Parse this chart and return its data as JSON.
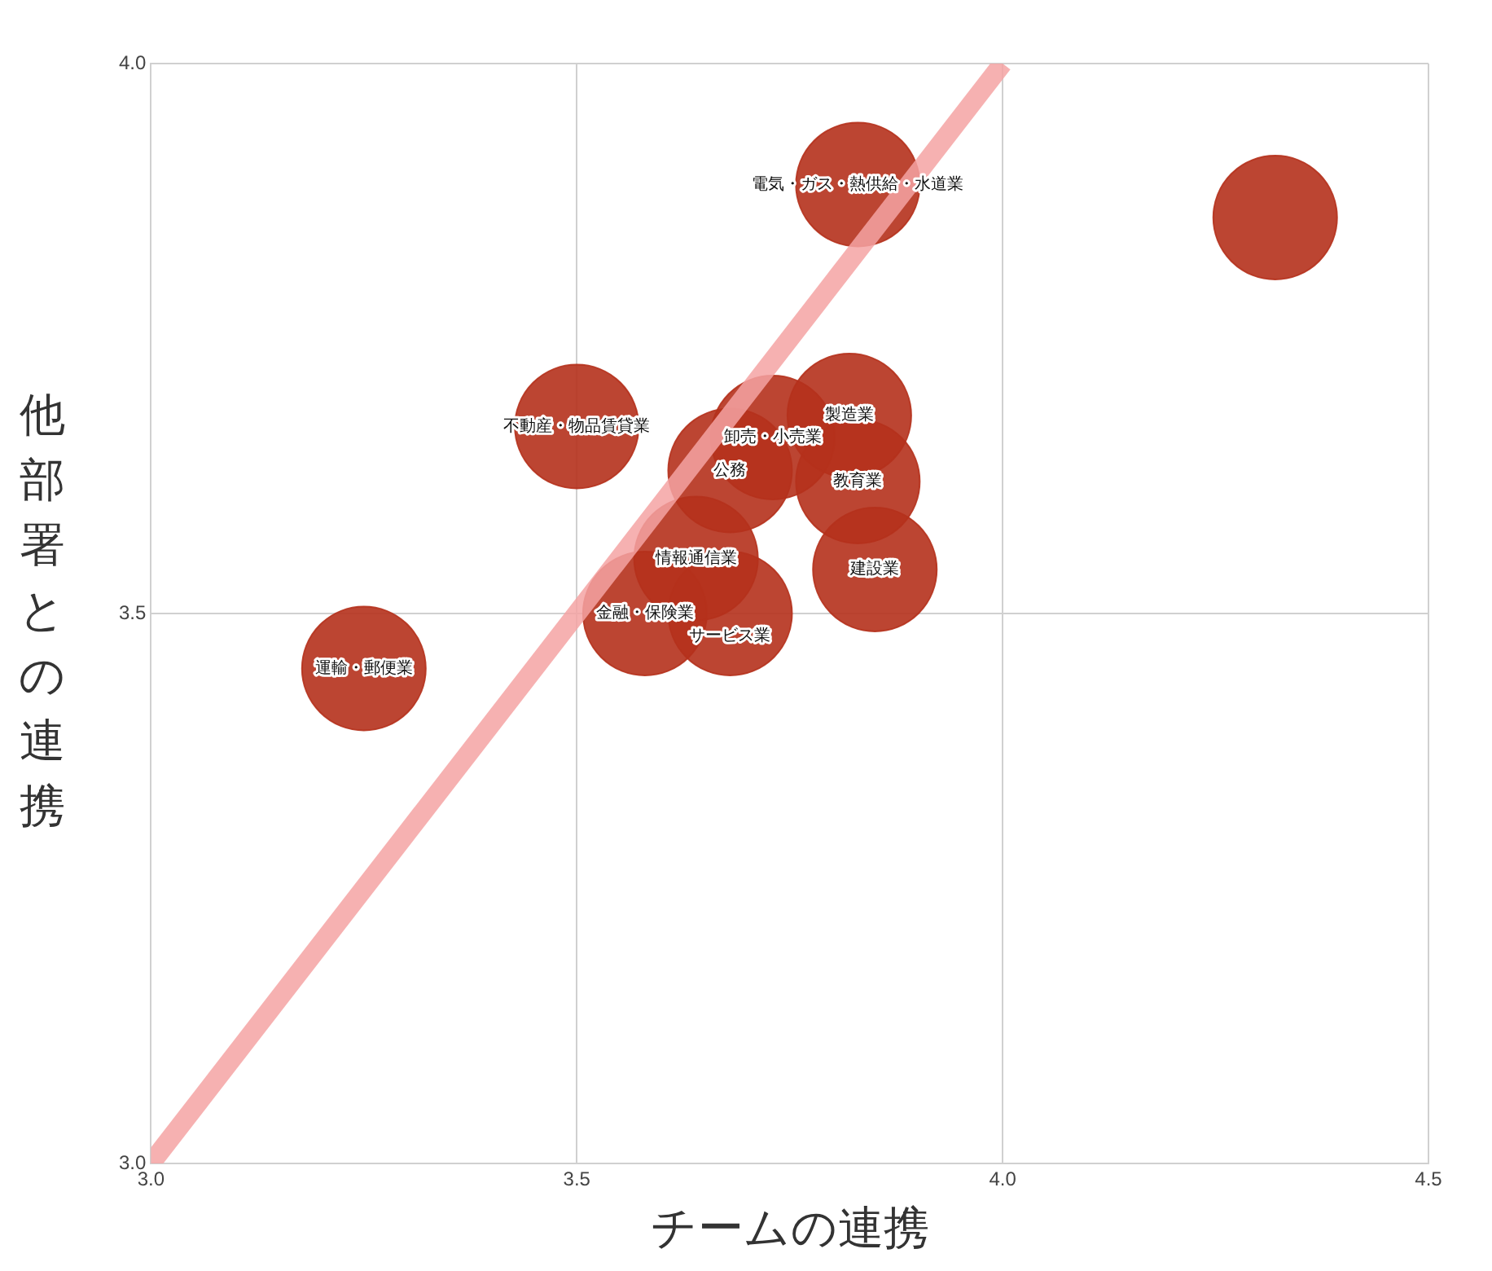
{
  "chart_data": {
    "type": "bubble",
    "xlabel": "チームの連携",
    "ylabel": "他部署との連携",
    "xlim": [
      3.0,
      4.5
    ],
    "xticks": [
      {
        "value": 3.0,
        "label": "3.0"
      },
      {
        "value": 3.5,
        "label": "3.5"
      },
      {
        "value": 4.0,
        "label": "4.0"
      },
      {
        "value": 4.5,
        "label": "4.5"
      }
    ],
    "ylim": [
      3.0,
      4.0
    ],
    "yticks": [
      {
        "value": 3.0,
        "label": "3.0"
      },
      {
        "value": 3.5,
        "label": "3.5"
      },
      {
        "value": 4.0,
        "label": "4.0"
      }
    ],
    "grid": true,
    "legend": false,
    "series": [
      {
        "type": "line",
        "color": "#f5a3a3",
        "x": [
          3.0,
          4.0
        ],
        "values": [
          3.0,
          4.0
        ]
      },
      {
        "name": "電気・ガス・熱供給・水道業",
        "color": "#b5311c",
        "x": [
          3.83
        ],
        "values": [
          3.89
        ],
        "sizes": [
          1
        ]
      },
      {
        "color": "#b5311c",
        "x": [
          4.32
        ],
        "values": [
          3.86
        ],
        "sizes": [
          1
        ]
      },
      {
        "name": "不動産・物品賃貸業",
        "color": "#b5311c",
        "x": [
          3.5
        ],
        "values": [
          3.67
        ],
        "sizes": [
          1
        ]
      },
      {
        "name": "製造業",
        "color": "#b5311c",
        "x": [
          3.82
        ],
        "values": [
          3.68
        ],
        "sizes": [
          1
        ]
      },
      {
        "name": "卸売・小売業",
        "color": "#b5311c",
        "x": [
          3.73
        ],
        "values": [
          3.66
        ],
        "sizes": [
          1
        ]
      },
      {
        "name": "公務",
        "color": "#b5311c",
        "x": [
          3.68
        ],
        "values": [
          3.63
        ],
        "sizes": [
          1
        ]
      },
      {
        "name": "教育業",
        "color": "#b5311c",
        "x": [
          3.83
        ],
        "values": [
          3.62
        ],
        "sizes": [
          1
        ]
      },
      {
        "name": "建設業",
        "color": "#b5311c",
        "x": [
          3.85
        ],
        "values": [
          3.54
        ],
        "sizes": [
          1
        ]
      },
      {
        "name": "情報通信業",
        "color": "#b5311c",
        "x": [
          3.64
        ],
        "values": [
          3.55
        ],
        "sizes": [
          1
        ]
      },
      {
        "name": "金融・保険業",
        "color": "#b5311c",
        "x": [
          3.58
        ],
        "values": [
          3.5
        ],
        "sizes": [
          1
        ]
      },
      {
        "name": "サービス業",
        "color": "#b5311c",
        "x": [
          3.68
        ],
        "values": [
          3.5
        ],
        "sizes": [
          1
        ]
      },
      {
        "name": "運輸・郵便業",
        "color": "#b5311c",
        "x": [
          3.25
        ],
        "values": [
          3.45
        ],
        "sizes": [
          1
        ]
      }
    ]
  }
}
